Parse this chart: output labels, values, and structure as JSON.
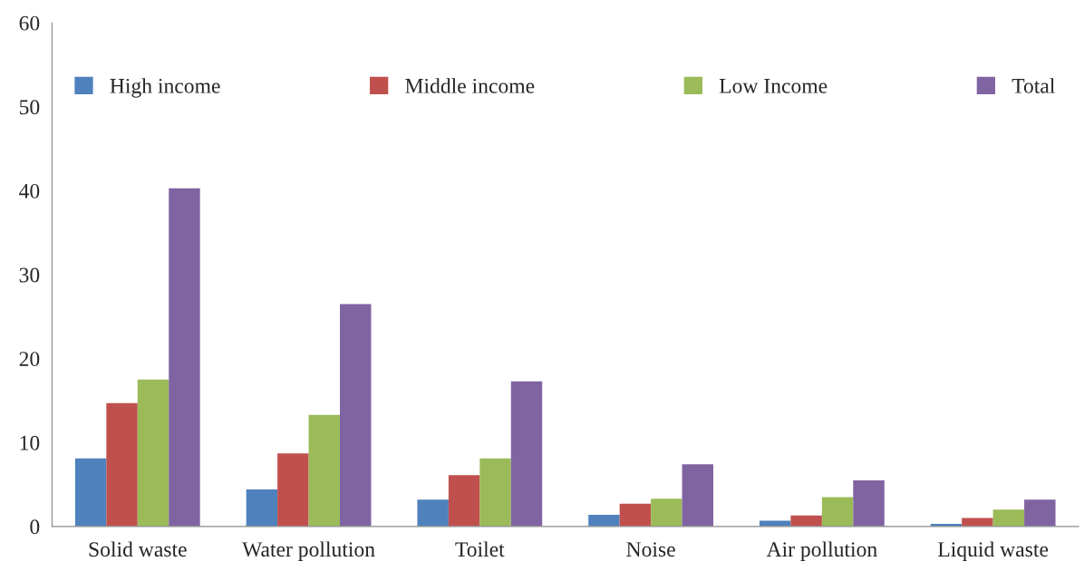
{
  "chart_data": {
    "type": "bar",
    "categories": [
      "Solid waste",
      "Water pollution",
      "Toilet",
      "Noise",
      "Air pollution",
      "Liquid waste"
    ],
    "series": [
      {
        "name": "High income",
        "color": "#4f81bd",
        "values": [
          8.1,
          4.4,
          3.2,
          1.4,
          0.7,
          0.3
        ]
      },
      {
        "name": "Middle income",
        "color": "#c0504d",
        "values": [
          14.7,
          8.7,
          6.1,
          2.7,
          1.3,
          1.0
        ]
      },
      {
        "name": "Low Income",
        "color": "#9bbb59",
        "values": [
          17.5,
          13.3,
          8.1,
          3.3,
          3.5,
          2.0
        ]
      },
      {
        "name": "Total",
        "color": "#8064a2",
        "values": [
          40.3,
          26.5,
          17.3,
          7.4,
          5.5,
          3.2
        ]
      }
    ],
    "ylim": [
      0,
      60
    ],
    "yticks": [
      0,
      10,
      20,
      30,
      40,
      50,
      60
    ],
    "grid": false,
    "legend": "top"
  }
}
